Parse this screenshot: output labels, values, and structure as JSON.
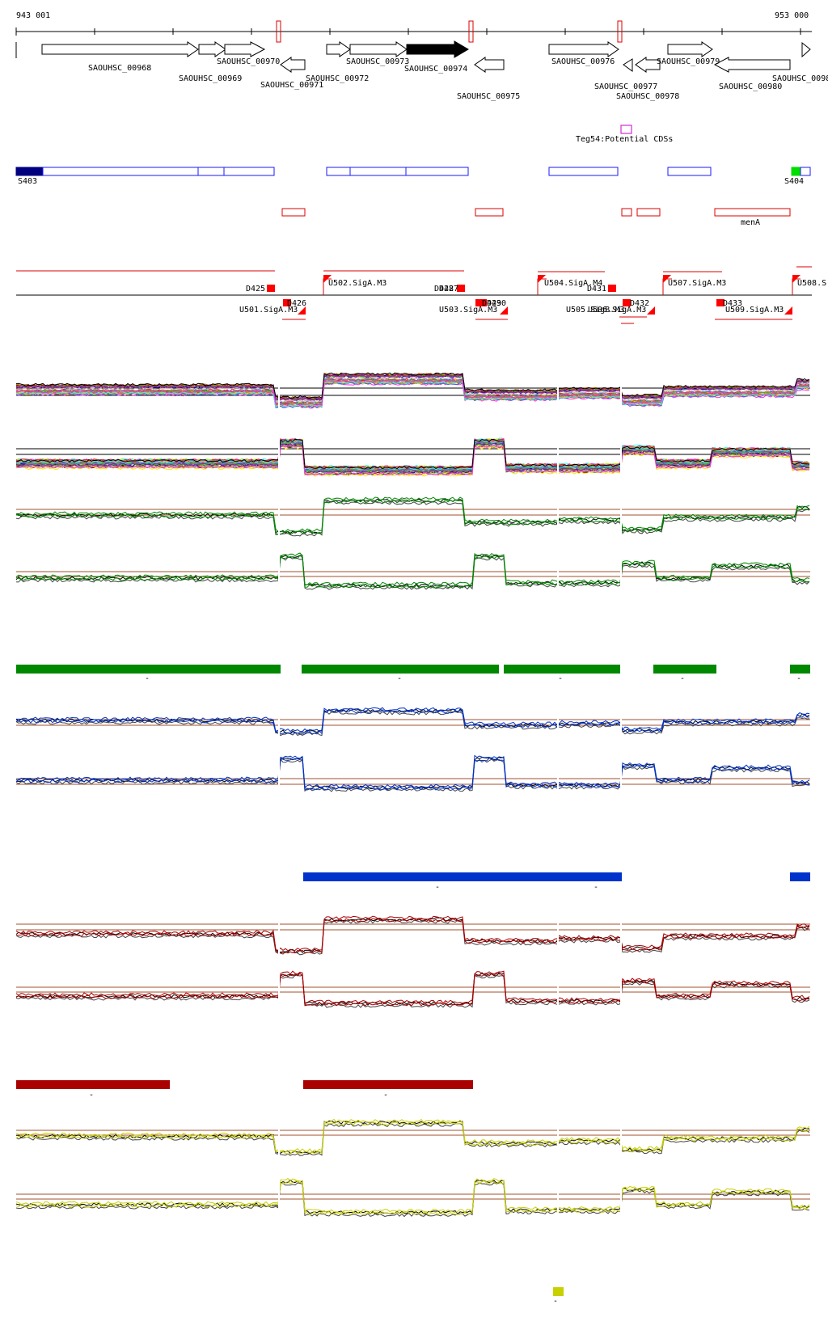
{
  "coordinates": {
    "start": "943 001",
    "end": "953 000"
  },
  "genes": [
    {
      "name": "SAOUHSC_00968"
    },
    {
      "name": "SAOUHSC_00969"
    },
    {
      "name": "SAOUHSC_00970"
    },
    {
      "name": "SAOUHSC_00971"
    },
    {
      "name": "SAOUHSC_00972"
    },
    {
      "name": "SAOUHSC_00973"
    },
    {
      "name": "SAOUHSC_00974"
    },
    {
      "name": "SAOUHSC_00975"
    },
    {
      "name": "SAOUHSC_00976"
    },
    {
      "name": "SAOUHSC_00977"
    },
    {
      "name": "SAOUHSC_00978"
    },
    {
      "name": "SAOUHSC_00979"
    },
    {
      "name": "SAOUHSC_00980"
    },
    {
      "name": "SAOUHSC_0098"
    }
  ],
  "potential_cds_label": "Teg54:Potential CDSs",
  "segments": [
    {
      "name": "S403"
    },
    {
      "name": "S404"
    }
  ],
  "red_feature_label": "menA",
  "transcription_units_upper": [
    {
      "name": "D425"
    },
    {
      "name": "U502.SigA.M3"
    },
    {
      "name": "D428"
    },
    {
      "name": "D427"
    },
    {
      "name": "U504.SigA.M4"
    },
    {
      "name": "D431"
    },
    {
      "name": "U507.SigA.M3"
    },
    {
      "name": "U508.S"
    }
  ],
  "transcription_units_lower": [
    {
      "name": "D426"
    },
    {
      "name": "U501.SigA.M3"
    },
    {
      "name": "D429"
    },
    {
      "name": "D430"
    },
    {
      "name": "U503.SigA.M3"
    },
    {
      "name": "U505.SigB.M3"
    },
    {
      "name": "U506.SigA.M3"
    },
    {
      "name": "D432"
    },
    {
      "name": "D433"
    },
    {
      "name": "U509.SigA.M3"
    }
  ],
  "colors": {
    "gene_outline": "#000000",
    "highlight_gene": "#000000",
    "segment_blue": "#1a1aff",
    "segment_dark": "#000080",
    "segment_green": "#00dd00",
    "feature_red": "#dd0000",
    "cds_magenta": "#cc00cc",
    "green_track": "#008800",
    "blue_track": "#0033cc",
    "red_track": "#aa0000",
    "yellow_track": "#c8d000",
    "threshold": "#a0522d"
  },
  "bar_labels": {
    "dash": "-"
  }
}
